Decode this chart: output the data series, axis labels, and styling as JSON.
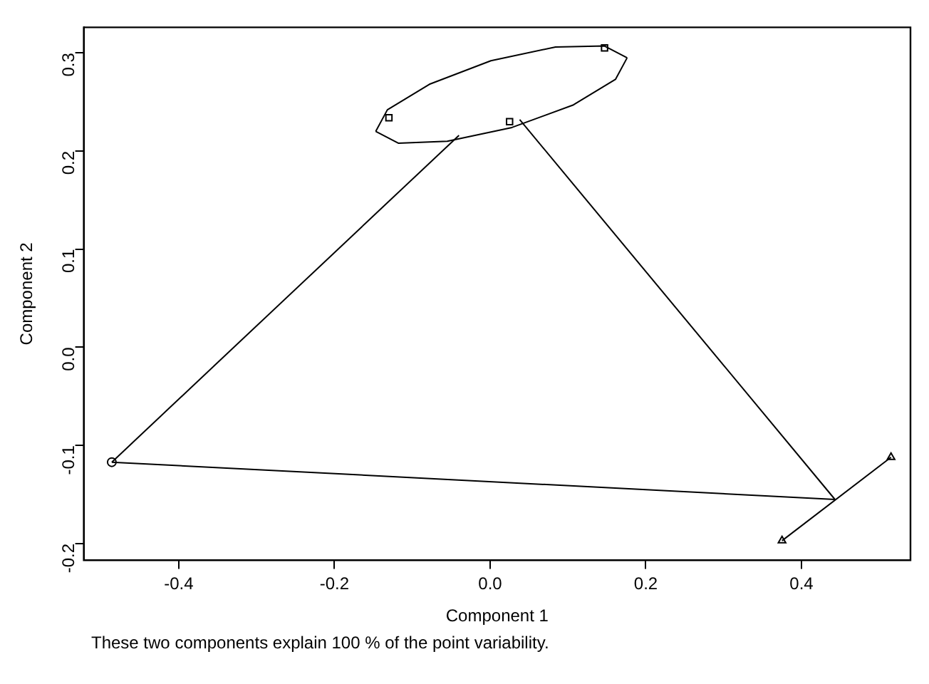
{
  "chart_data": {
    "type": "scatter",
    "xlabel": "Component 1",
    "ylabel": "Component 2",
    "annotations": [
      "These two components explain 100 % of the point variability."
    ],
    "xlim": [
      -0.522,
      0.54
    ],
    "ylim": [
      -0.217,
      0.326
    ],
    "xticks": [
      -0.4,
      -0.2,
      {
        "value": 0,
        "label": "0.0"
      },
      0.2,
      0.4
    ],
    "yticks": [
      -0.2,
      -0.1,
      {
        "value": 0,
        "label": "0.0"
      },
      0.1,
      0.2,
      0.3
    ],
    "series": [
      {
        "type": "line",
        "marker": "none",
        "color": "#000000",
        "x": [
          -0.147,
          -0.132,
          -0.078,
          0.001,
          0.084,
          0.147,
          0.176
        ],
        "values": [
          0.22,
          0.242,
          0.268,
          0.292,
          0.306,
          0.307,
          0.295
        ]
      },
      {
        "type": "line",
        "marker": "none",
        "color": "#000000",
        "x": [
          -0.147,
          -0.118,
          -0.055,
          0.028,
          0.107,
          0.161,
          0.176
        ],
        "values": [
          0.22,
          0.208,
          0.21,
          0.224,
          0.247,
          0.273,
          0.295
        ]
      },
      {
        "type": "line",
        "marker": "none",
        "color": "#000000",
        "x": [
          -0.486,
          -0.04
        ],
        "values": [
          -0.117,
          0.216
        ]
      },
      {
        "type": "line",
        "marker": "none",
        "color": "#000000",
        "x": [
          0.038,
          0.443
        ],
        "values": [
          0.232,
          -0.155
        ]
      },
      {
        "type": "line",
        "marker": "none",
        "color": "#000000",
        "x": [
          -0.486,
          0.443
        ],
        "values": [
          -0.117,
          -0.155
        ]
      },
      {
        "type": "line",
        "marker": "triangle",
        "color": "#000000",
        "x": [
          0.375,
          0.515
        ],
        "values": [
          -0.197,
          -0.112
        ]
      },
      {
        "type": "scatter",
        "marker": "square",
        "color": "#000000",
        "x": [
          -0.13,
          0.147,
          0.025
        ],
        "values": [
          0.234,
          0.305,
          0.23
        ]
      },
      {
        "type": "scatter",
        "marker": "circle",
        "color": "#000000",
        "x": [
          -0.486
        ],
        "values": [
          -0.117
        ]
      }
    ]
  }
}
